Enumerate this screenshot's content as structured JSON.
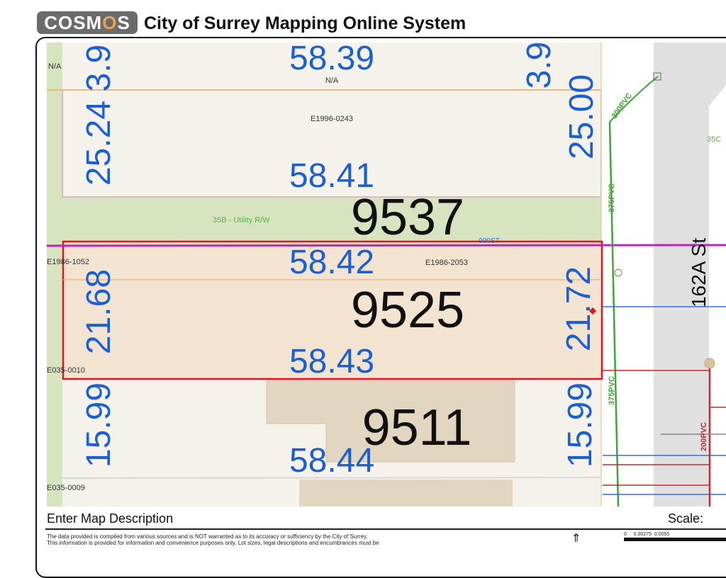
{
  "header": {
    "logo_text": "COSMOS",
    "title": "City of Surrey Mapping Online System"
  },
  "map": {
    "parcels": [
      {
        "number": "9537",
        "plan": "E1996-0243"
      },
      {
        "number": "9525",
        "plan": "E1986-2053",
        "selected": true
      },
      {
        "number": "9511"
      }
    ],
    "dimensions": {
      "top_width": "58.39",
      "na_center": "N/A",
      "na_left": "N/A",
      "left_top_a": "25.24",
      "left_top_b": "3.9",
      "right_top_a": "3.9",
      "right_top_b": "25.00",
      "w2": "58.41",
      "w3": "58.42",
      "w4": "58.43",
      "w5": "58.44",
      "left_9525": "21.68",
      "right_9525": "21.72",
      "left_9511": "15.99",
      "right_9511": "15.99"
    },
    "labels": {
      "utility_row": "35B - Utility R/W",
      "plan_left": "E1986-1052",
      "plan_e035_0010": "E035-0010",
      "plan_e035_0009": "E035-0009",
      "street": "162A St",
      "road_label_right": "35C",
      "magenta_label": "900ST",
      "pipe_300": "300PVC",
      "pipe_375_a": "375PVC",
      "pipe_375_b": "375PVC",
      "pipe_200": "200PVC"
    },
    "colors": {
      "dimension": "#1a5fd6",
      "selected_outline": "#e3141b",
      "water": "#3aa832",
      "sewer": "#c8282e",
      "storm": "#2f6fe0",
      "road": "#e0e0e0",
      "magenta": "#c21fc8"
    }
  },
  "footer": {
    "description": "Enter Map Description",
    "scale_label": "Scale:",
    "disclaimer_1": "The data provided is compiled from various sources and is NOT warranted as to its accuracy or sufficiency by the City of Surrey.",
    "disclaimer_2": "This information is provided for information and convenience purposes only. Lot sizes, legal descriptions and encumbrances must be",
    "scale_ticks": [
      "0",
      "0.00275",
      "0.0055"
    ]
  }
}
